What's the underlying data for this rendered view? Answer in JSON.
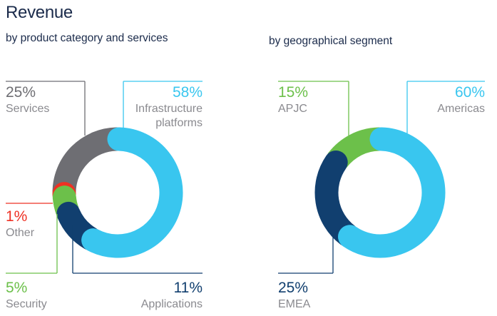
{
  "title": "Revenue",
  "chart_data": [
    {
      "type": "pie",
      "subtitle": "by product category and services",
      "slices": [
        {
          "label": "Infrastructure platforms",
          "value": 58,
          "percent_label": "58%",
          "label_lines": [
            "Infrastructure",
            "platforms"
          ],
          "color": "#39c6ef"
        },
        {
          "label": "Applications",
          "value": 11,
          "percent_label": "11%",
          "label_lines": [
            "Applications"
          ],
          "color": "#113f6f"
        },
        {
          "label": "Security",
          "value": 5,
          "percent_label": "5%",
          "label_lines": [
            "Security"
          ],
          "color": "#6cc04a"
        },
        {
          "label": "Other",
          "value": 1,
          "percent_label": "1%",
          "label_lines": [
            "Other"
          ],
          "color": "#ee3124"
        },
        {
          "label": "Services",
          "value": 25,
          "percent_label": "25%",
          "label_lines": [
            "Services"
          ],
          "color": "#6e6e73"
        }
      ]
    },
    {
      "type": "pie",
      "subtitle": "by geographical segment",
      "slices": [
        {
          "label": "Americas",
          "value": 60,
          "percent_label": "60%",
          "label_lines": [
            "Americas"
          ],
          "color": "#39c6ef"
        },
        {
          "label": "EMEA",
          "value": 25,
          "percent_label": "25%",
          "label_lines": [
            "EMEA"
          ],
          "color": "#113f6f"
        },
        {
          "label": "APJC",
          "value": 15,
          "percent_label": "15%",
          "label_lines": [
            "APJC"
          ],
          "color": "#6cc04a"
        }
      ]
    }
  ]
}
